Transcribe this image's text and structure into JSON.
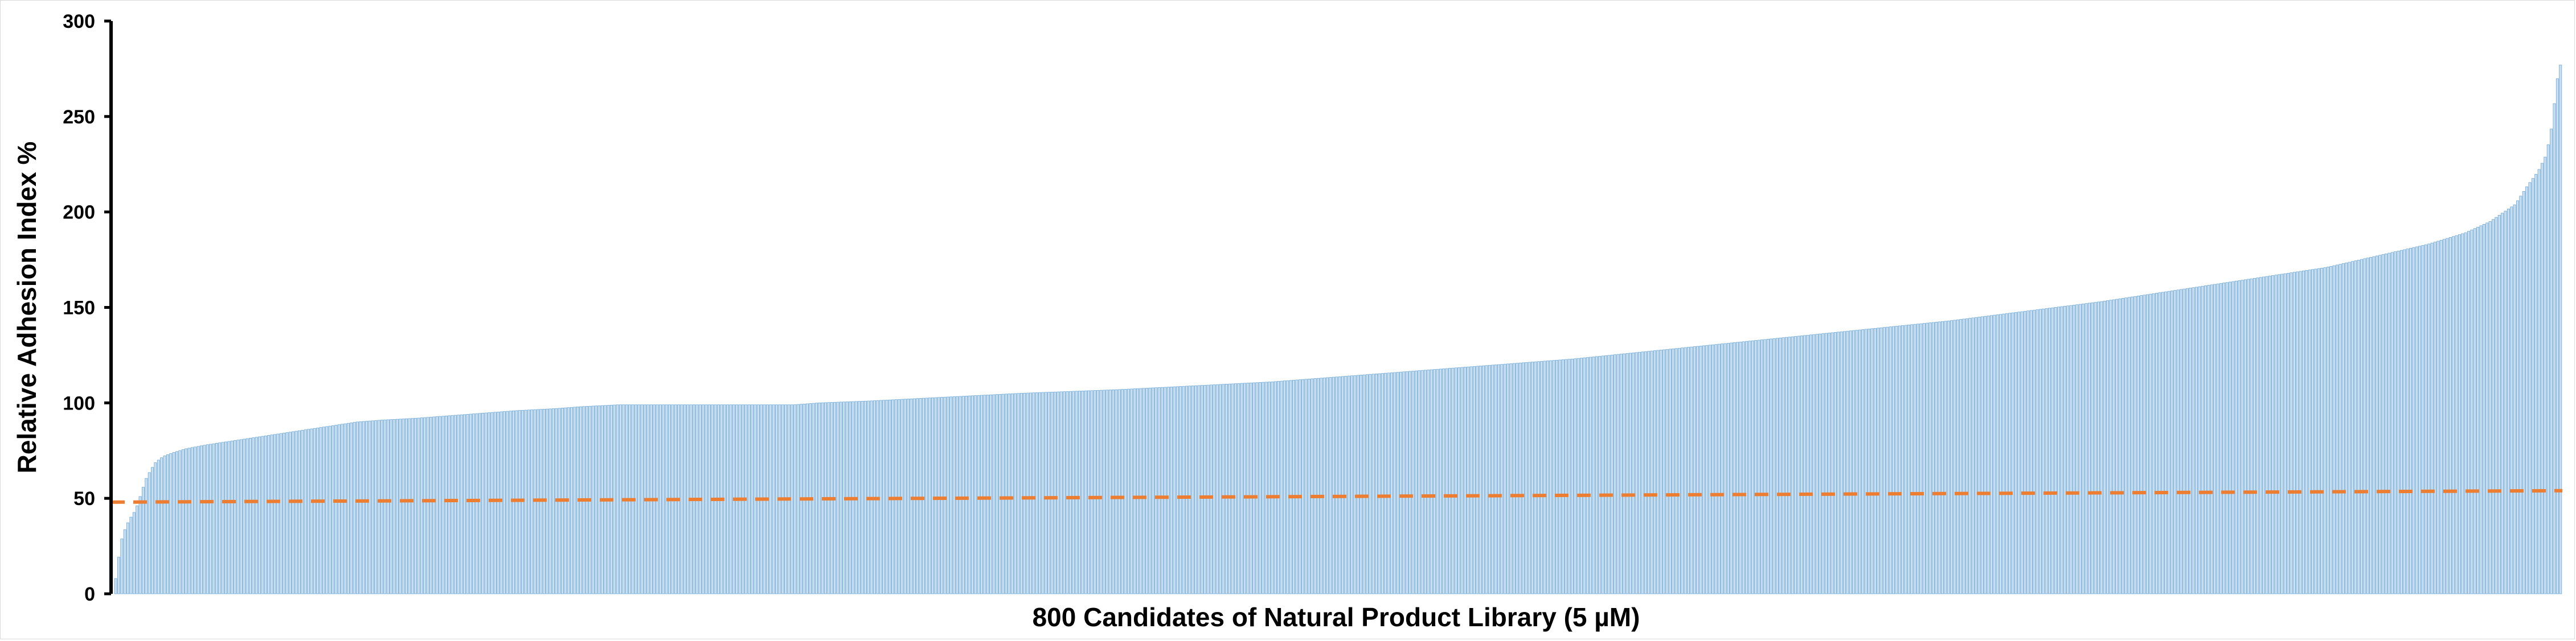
{
  "chart_data": {
    "type": "bar",
    "title": "",
    "xlabel": "800 Candidates of Natural Product Library  (5 µM)",
    "ylabel": "Relative Adhesion Index %",
    "ylim": [
      0,
      300
    ],
    "yticks": [
      0,
      50,
      100,
      150,
      200,
      250,
      300
    ],
    "grid": false,
    "legend": "none",
    "n_candidates": 800,
    "sorted": "ascending",
    "bar_color": "#c9dff0",
    "bar_edge_color": "#6fa8d6",
    "threshold_color": "#ed7d31",
    "value_profile": [
      [
        0,
        8
      ],
      [
        1,
        17
      ],
      [
        2,
        27
      ],
      [
        4,
        35
      ],
      [
        6,
        40
      ],
      [
        8,
        44
      ],
      [
        10,
        52
      ],
      [
        12,
        60
      ],
      [
        14,
        65
      ],
      [
        16,
        69
      ],
      [
        19,
        72
      ],
      [
        23,
        74
      ],
      [
        28,
        76
      ],
      [
        36,
        78
      ],
      [
        46,
        80
      ],
      [
        56,
        82
      ],
      [
        66,
        84
      ],
      [
        76,
        86
      ],
      [
        86,
        88
      ],
      [
        96,
        90
      ],
      [
        106,
        91
      ],
      [
        120,
        92
      ],
      [
        140,
        94
      ],
      [
        160,
        96
      ],
      [
        175,
        97
      ],
      [
        185,
        98
      ],
      [
        200,
        99
      ],
      [
        240,
        99
      ],
      [
        270,
        99
      ],
      [
        280,
        100
      ],
      [
        300,
        101
      ],
      [
        330,
        103
      ],
      [
        360,
        105
      ],
      [
        400,
        107
      ],
      [
        430,
        109
      ],
      [
        460,
        111
      ],
      [
        490,
        114
      ],
      [
        520,
        117
      ],
      [
        550,
        120
      ],
      [
        580,
        123
      ],
      [
        610,
        127
      ],
      [
        640,
        131
      ],
      [
        670,
        135
      ],
      [
        700,
        139
      ],
      [
        730,
        143
      ],
      [
        760,
        148
      ],
      [
        790,
        153
      ],
      [
        820,
        159
      ],
      [
        850,
        165
      ],
      [
        880,
        171
      ],
      [
        900,
        177
      ],
      [
        920,
        183
      ],
      [
        935,
        189
      ],
      [
        945,
        195
      ],
      [
        955,
        204
      ],
      [
        960,
        214
      ],
      [
        964,
        221
      ],
      [
        967,
        229
      ],
      [
        969,
        240
      ],
      [
        970,
        250
      ],
      [
        971,
        262
      ],
      [
        972,
        272
      ],
      [
        973,
        277
      ]
    ],
    "threshold_line": {
      "start": 48,
      "end": 54
    }
  }
}
